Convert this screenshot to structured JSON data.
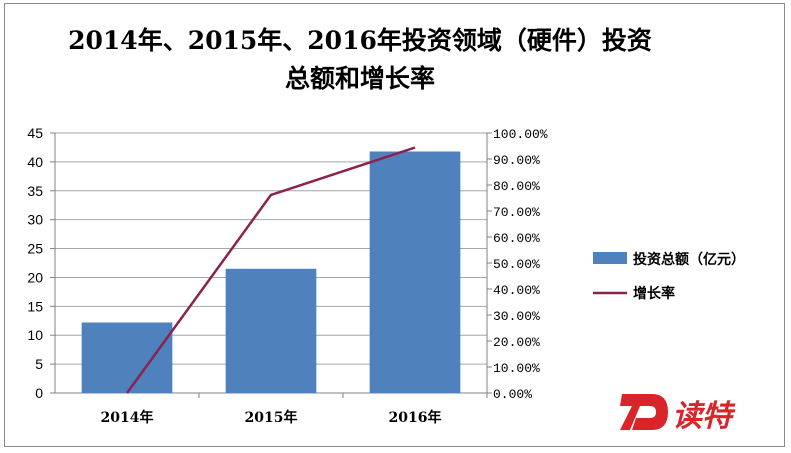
{
  "chart_data": {
    "type": "bar",
    "title": "2014年、2015年、2016年投资领域（硬件）投资总额和增长率",
    "categories": [
      "2014年",
      "2015年",
      "2016年"
    ],
    "series": [
      {
        "name": "投资总额（亿元）",
        "kind": "bar",
        "axis": "left",
        "color": "#4f81bd",
        "values": [
          12.2,
          21.5,
          41.8
        ]
      },
      {
        "name": "增长率",
        "kind": "line",
        "axis": "right",
        "color": "#8b2252",
        "values": [
          0,
          0.762,
          0.944
        ]
      }
    ],
    "y_left": {
      "min": 0,
      "max": 45,
      "step": 5,
      "ticks": [
        "0",
        "5",
        "10",
        "15",
        "20",
        "25",
        "30",
        "35",
        "40",
        "45"
      ]
    },
    "y_right": {
      "min": 0,
      "max": 1,
      "step": 0.1,
      "ticks": [
        "0.00%",
        "10.00%",
        "20.00%",
        "30.00%",
        "40.00%",
        "50.00%",
        "60.00%",
        "70.00%",
        "80.00%",
        "90.00%",
        "100.00%"
      ]
    },
    "grid": true,
    "legend_position": "right"
  },
  "watermark": {
    "text": "读特",
    "letter": "D",
    "color": "#d9252a"
  }
}
